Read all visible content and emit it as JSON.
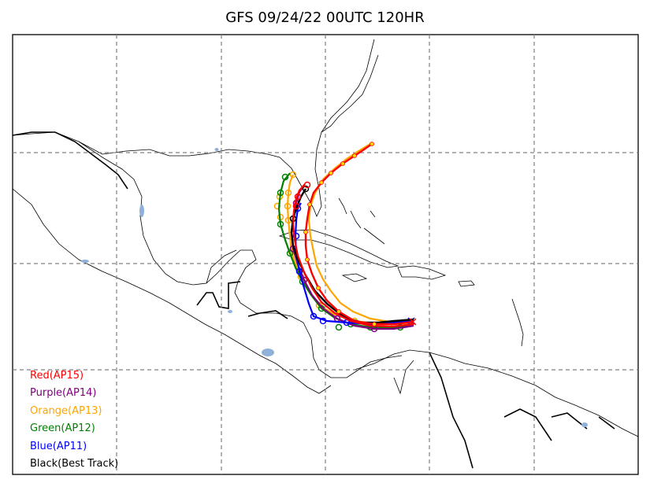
{
  "title": "GFS 09/24/22 00UTC 120HR",
  "legend": [
    {
      "label": "Red(AP15)",
      "color": "#ff0000"
    },
    {
      "label": "Purple(AP14)",
      "color": "#800080"
    },
    {
      "label": "Orange(AP13)",
      "color": "#ffa500"
    },
    {
      "label": "Green(AP12)",
      "color": "#008000"
    },
    {
      "label": "Blue(AP11)",
      "color": "#0000ff"
    },
    {
      "label": "Black(Best Track)",
      "color": "#000000"
    }
  ],
  "map": {
    "gridlines": "dashed",
    "land_color": "#ffffff",
    "lake_color": "#8fb0d8",
    "region": "Gulf of Mexico, Caribbean Sea, Florida, Central America, northern South America"
  }
}
